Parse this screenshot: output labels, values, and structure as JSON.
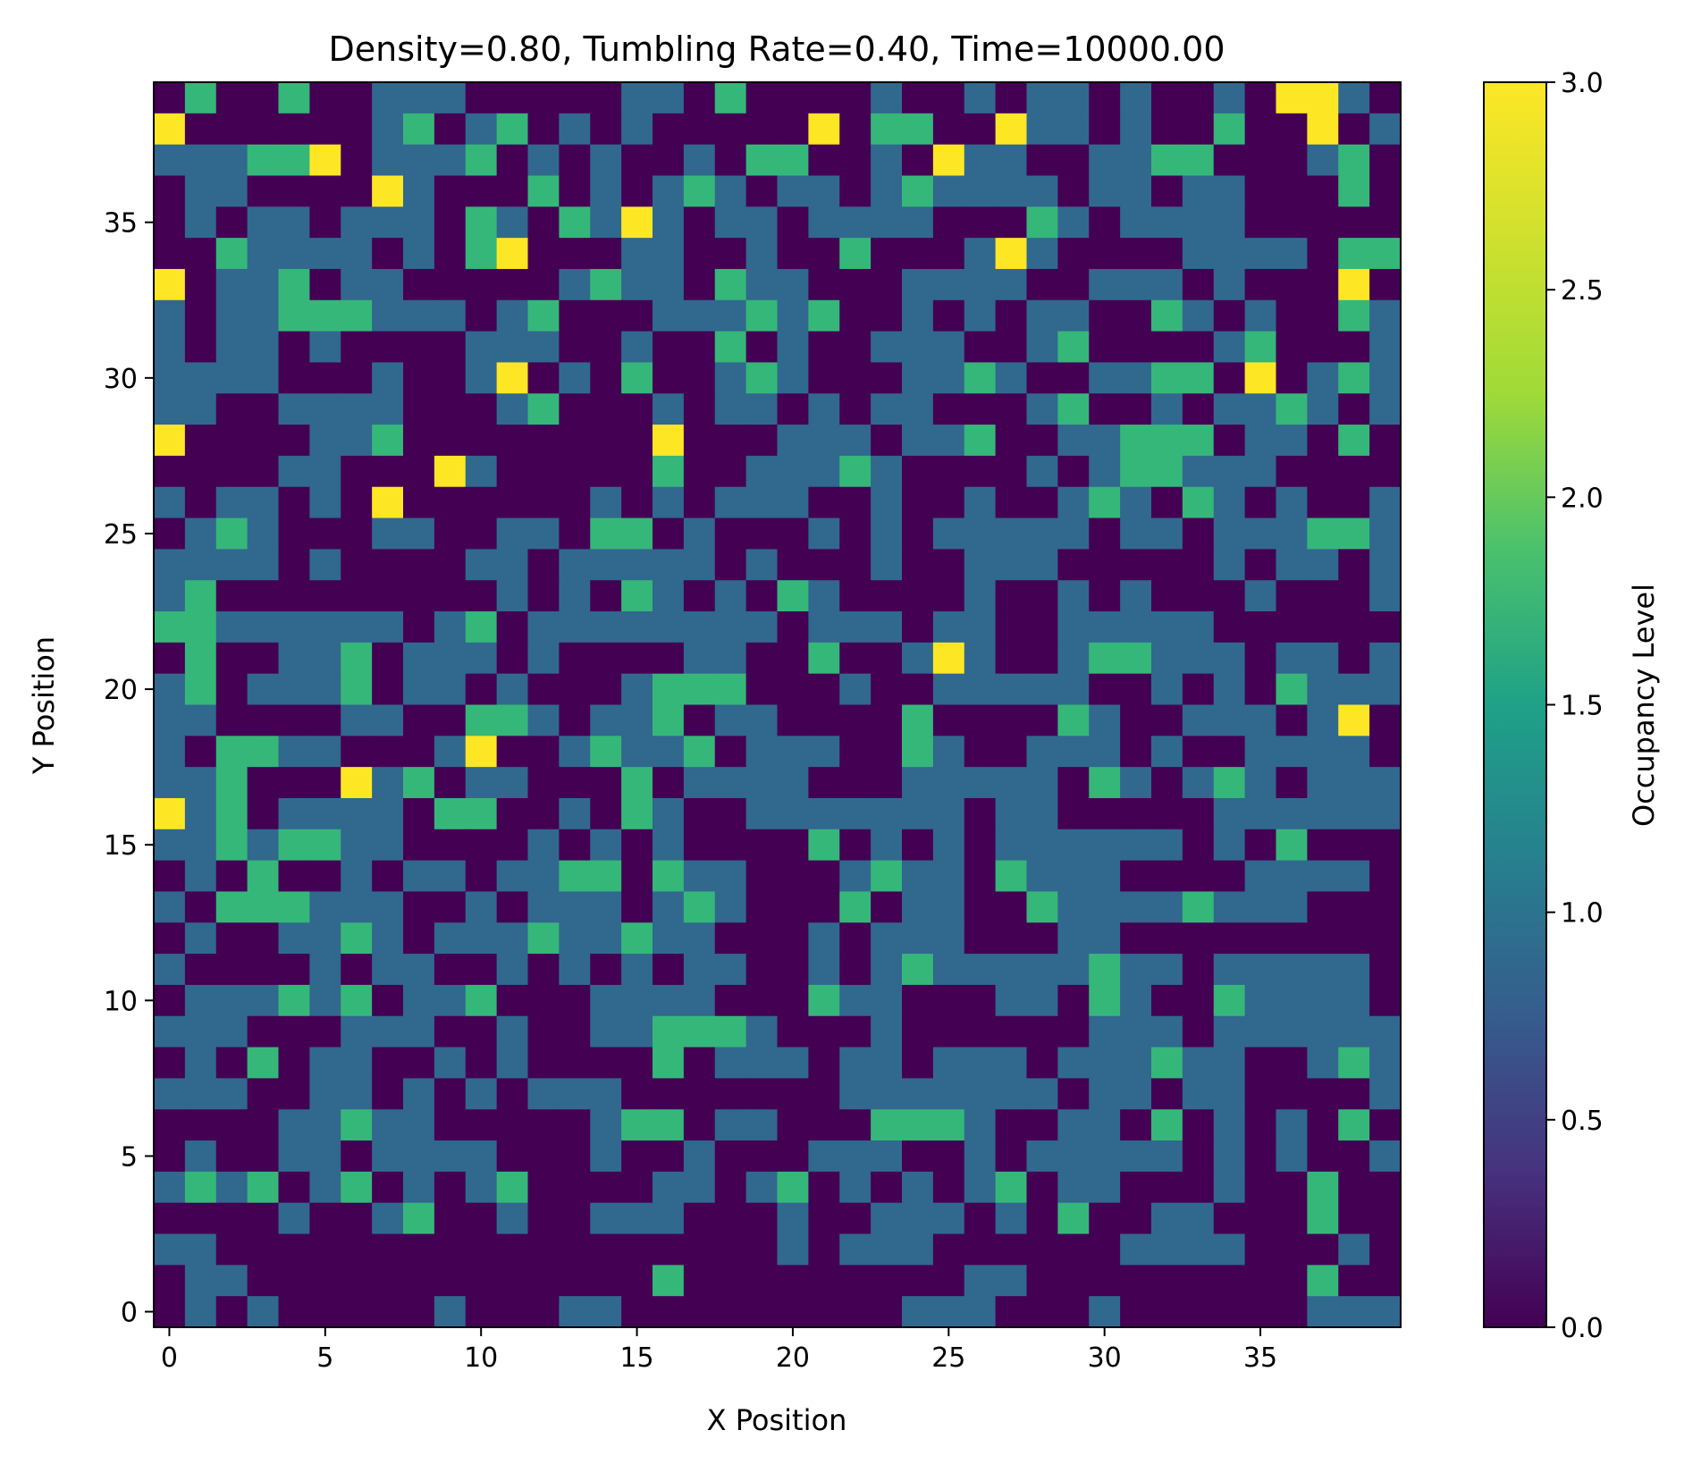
{
  "chart_data": {
    "type": "heatmap",
    "title": "Density=0.80, Tumbling Rate=0.40, Time=10000.00",
    "xlabel": "X Position",
    "ylabel": "Y Position",
    "colorbar_label": "Occupancy Level",
    "colormap": "viridis",
    "vmin": 0,
    "vmax": 3,
    "colors": {
      "0": "#440154",
      "1": "#31688e",
      "2": "#35b779",
      "3": "#fde725"
    },
    "x_ticks": [
      "0",
      "5",
      "10",
      "15",
      "20",
      "25",
      "30",
      "35"
    ],
    "y_ticks": [
      "0",
      "5",
      "10",
      "15",
      "20",
      "25",
      "30",
      "35"
    ],
    "colorbar_ticks": [
      "0.0",
      "0.5",
      "1.0",
      "1.5",
      "2.0",
      "2.5",
      "3.0"
    ],
    "grid_size": [
      40,
      40
    ],
    "values_rows_top_to_bottom": [
      "0200200111000001102000010010110100103310",
      "3000000120120101000003022003110100200301",
      "1112230111201010010220010311001122000120",
      "0110000310002010121011012111101101100020",
      "0101101110210213101101111000210111100000",
      "0021111010230001100100200013100001111022",
      "3011201100000121102110001111001110100030",
      "1011222111012000111212001010110021010021",
      "1011010000111001002010011100120000120001",
      "1111000100130102001210001121001122030121",
      "1100111100012000101101011000120010112101",
      "3000011200000000300011101120011222011020",
      "0000110003100000200111210000101221110000",
      "1011010300000010101110010010012102101001",
      "0121000110011022010001010111110110111221",
      "1111010000110111110100010011100000101101",
      "1200000000010102101021000010010100010001",
      "2211111101201111111101110110011111000000",
      "0200112011101000011002001310012211101101",
      "1201112011010001222000100111110010102111",
      "1100001100221011201100002000021001110130",
      "1022110001300121120111002100111010011110",
      "1120003120110002011110001111102101210111",
      "3120111102200102100111111101100000111111",
      "1121221100001010100002010101111110102000",
      "0102001011011220211000121102111000011110",
      "1022211100101110121000201100211112111000",
      "0100112101112112110001011100011000000000",
      "1000010110010101011001012111112110111110",
      "0111212011200011110002110001102100211110",
      "1110001110010011222100010000001110111111",
      "0102011001010000201110110111011121100121",
      "1110011010101110000000111111101101100001",
      "0000112110000012201100022210011020101020",
      "0100110111100010010001110010111110101001",
      "1212012010120000110120101012011000100200",
      "0000100120010011100010011101020011000200",
      "1100000000000000000010111000000111100010",
      "0110000000000000200000000011000000000200",
      "0101000001000110000000001110001000000111"
    ]
  }
}
